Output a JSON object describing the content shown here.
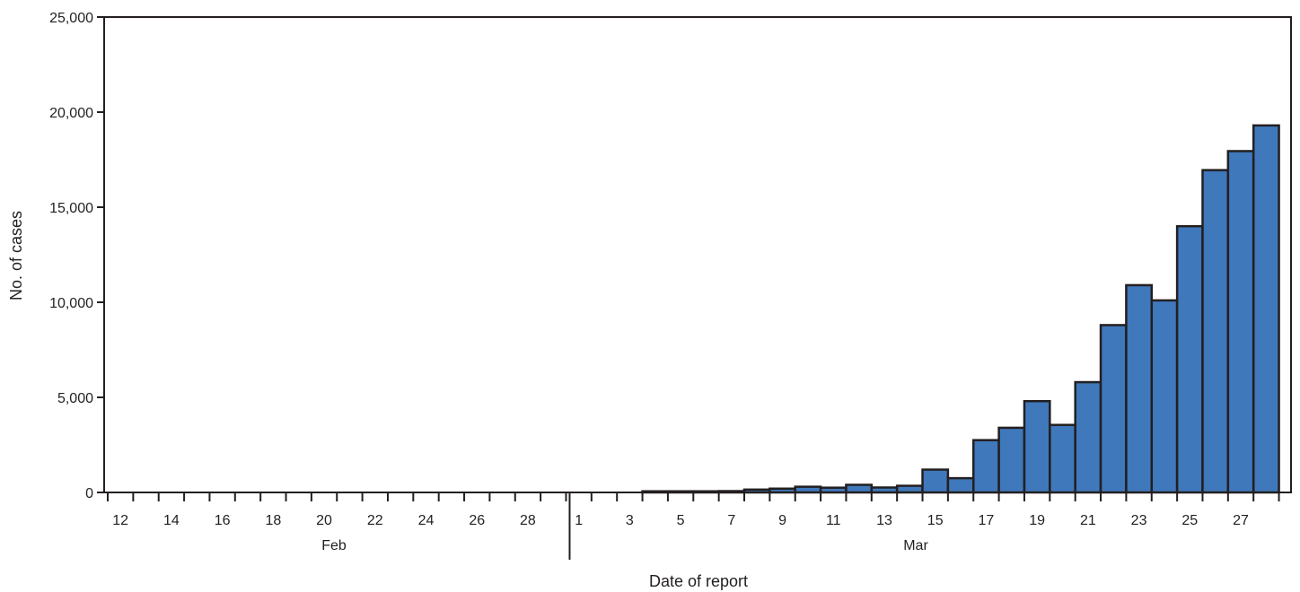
{
  "chart_data": {
    "type": "bar",
    "title": "",
    "xlabel": "Date of report",
    "ylabel": "No. of cases",
    "ylim": [
      0,
      25000
    ],
    "y_ticks": [
      0,
      5000,
      10000,
      15000,
      20000,
      25000
    ],
    "y_tick_labels": [
      "0",
      "5,000",
      "10,000",
      "15,000",
      "20,000",
      "25,000"
    ],
    "grid": false,
    "bar_color": "#3f78bb",
    "categories": [
      "Feb 12",
      "Feb 13",
      "Feb 14",
      "Feb 15",
      "Feb 16",
      "Feb 17",
      "Feb 18",
      "Feb 19",
      "Feb 20",
      "Feb 21",
      "Feb 22",
      "Feb 23",
      "Feb 24",
      "Feb 25",
      "Feb 26",
      "Feb 27",
      "Feb 28",
      "Feb 29",
      "Mar 1",
      "Mar 2",
      "Mar 3",
      "Mar 4",
      "Mar 5",
      "Mar 6",
      "Mar 7",
      "Mar 8",
      "Mar 9",
      "Mar 10",
      "Mar 11",
      "Mar 12",
      "Mar 13",
      "Mar 14",
      "Mar 15",
      "Mar 16",
      "Mar 17",
      "Mar 18",
      "Mar 19",
      "Mar 20",
      "Mar 21",
      "Mar 22",
      "Mar 23",
      "Mar 24",
      "Mar 25",
      "Mar 26",
      "Mar 27",
      "Mar 28"
    ],
    "values": [
      0,
      0,
      0,
      0,
      0,
      0,
      0,
      0,
      0,
      0,
      0,
      0,
      0,
      0,
      0,
      0,
      0,
      0,
      0,
      0,
      0,
      60,
      60,
      60,
      70,
      150,
      200,
      300,
      250,
      400,
      260,
      350,
      1200,
      750,
      2750,
      3400,
      4800,
      3550,
      5800,
      8800,
      10900,
      10100,
      14000,
      16950,
      17950,
      19300
    ],
    "x_tick_labels": [
      {
        "index": 0,
        "label": "12"
      },
      {
        "index": 2,
        "label": "14"
      },
      {
        "index": 4,
        "label": "16"
      },
      {
        "index": 6,
        "label": "18"
      },
      {
        "index": 8,
        "label": "20"
      },
      {
        "index": 10,
        "label": "22"
      },
      {
        "index": 12,
        "label": "24"
      },
      {
        "index": 14,
        "label": "26"
      },
      {
        "index": 16,
        "label": "28"
      },
      {
        "index": 18,
        "label": "1"
      },
      {
        "index": 20,
        "label": "3"
      },
      {
        "index": 22,
        "label": "5"
      },
      {
        "index": 24,
        "label": "7"
      },
      {
        "index": 26,
        "label": "9"
      },
      {
        "index": 28,
        "label": "11"
      },
      {
        "index": 30,
        "label": "13"
      },
      {
        "index": 32,
        "label": "15"
      },
      {
        "index": 34,
        "label": "17"
      },
      {
        "index": 36,
        "label": "19"
      },
      {
        "index": 38,
        "label": "21"
      },
      {
        "index": 40,
        "label": "23"
      },
      {
        "index": 42,
        "label": "25"
      },
      {
        "index": 44,
        "label": "27"
      }
    ],
    "month_groups": [
      {
        "label": "Feb",
        "start_index": 0,
        "end_index": 17
      },
      {
        "label": "Mar",
        "start_index": 18,
        "end_index": 45
      }
    ]
  }
}
